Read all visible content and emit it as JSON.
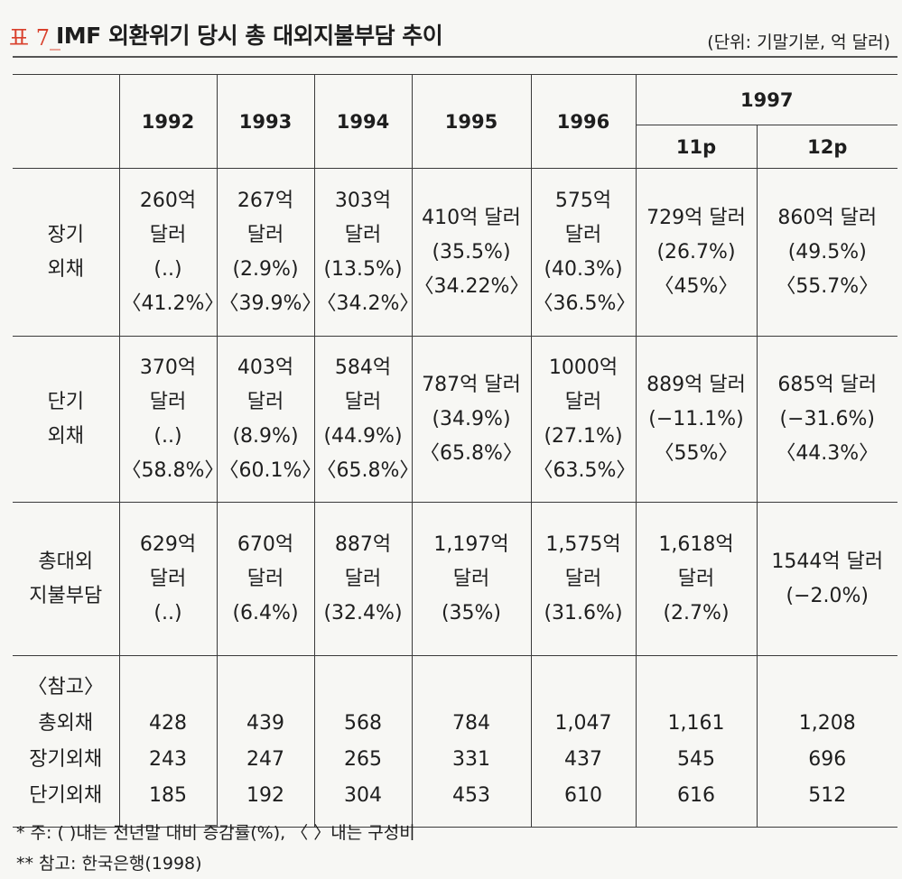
{
  "title": {
    "prefix": "표 7_",
    "main": "IMF 외환위기 당시 총 대외지불부담 추이",
    "unit": "(단위: 기말기분, 억 달러)"
  },
  "table": {
    "year_headers": [
      "1992",
      "1993",
      "1994",
      "1995",
      "1996",
      "1997"
    ],
    "sub_headers_1997": [
      "11p",
      "12p"
    ],
    "rows": [
      {
        "label": [
          "장기",
          "외채"
        ],
        "cells": [
          [
            "260억",
            "달러",
            "(..)",
            "〈41.2%〉"
          ],
          [
            "267억",
            "달러",
            "(2.9%)",
            "〈39.9%〉"
          ],
          [
            "303억",
            "달러",
            "(13.5%)",
            "〈34.2%〉"
          ],
          [
            "410억 달러",
            "(35.5%)",
            "〈34.22%〉"
          ],
          [
            "575억",
            "달러",
            "(40.3%)",
            "〈36.5%〉"
          ],
          [
            "729억 달러",
            "(26.7%)",
            "〈45%〉"
          ],
          [
            "860억 달러",
            "(49.5%)",
            "〈55.7%〉"
          ]
        ]
      },
      {
        "label": [
          "단기",
          "외채"
        ],
        "cells": [
          [
            "370억",
            "달러",
            "(..)",
            "〈58.8%〉"
          ],
          [
            "403억",
            "달러",
            "(8.9%)",
            "〈60.1%〉"
          ],
          [
            "584억",
            "달러",
            "(44.9%)",
            "〈65.8%〉"
          ],
          [
            "787억 달러",
            "(34.9%)",
            "〈65.8%〉"
          ],
          [
            "1000억",
            "달러",
            "(27.1%)",
            "〈63.5%〉"
          ],
          [
            "889억 달러",
            "(−11.1%)",
            "〈55%〉"
          ],
          [
            "685억 달러",
            "(−31.6%)",
            "〈44.3%〉"
          ]
        ]
      },
      {
        "label": [
          "총대외",
          "지불부담"
        ],
        "cells": [
          [
            "629억",
            "달러",
            "(..)"
          ],
          [
            "670억",
            "달러",
            "(6.4%)"
          ],
          [
            "887억",
            "달러",
            "(32.4%)"
          ],
          [
            "1,197억",
            "달러",
            "(35%)"
          ],
          [
            "1,575억",
            "달러",
            "(31.6%)"
          ],
          [
            "1,618억",
            "달러",
            "(2.7%)"
          ],
          [
            "1544억 달러",
            "(−2.0%)"
          ]
        ]
      },
      {
        "label": [
          "〈참고〉",
          "총외채",
          "장기외채",
          "단기외채"
        ],
        "cells": [
          [
            "428",
            "243",
            "185"
          ],
          [
            "439",
            "247",
            "192"
          ],
          [
            "568",
            "265",
            "304"
          ],
          [
            "784",
            "331",
            "453"
          ],
          [
            "1,047",
            "437",
            "610"
          ],
          [
            "1,161",
            "545",
            "616"
          ],
          [
            "1,208",
            "696",
            "512"
          ]
        ]
      }
    ]
  },
  "footnotes": [
    "* 주: ( )내는 전년말 대비 증감률(%), 〈 〉내는 구성비",
    "** 참고: 한국은행(1998)"
  ]
}
